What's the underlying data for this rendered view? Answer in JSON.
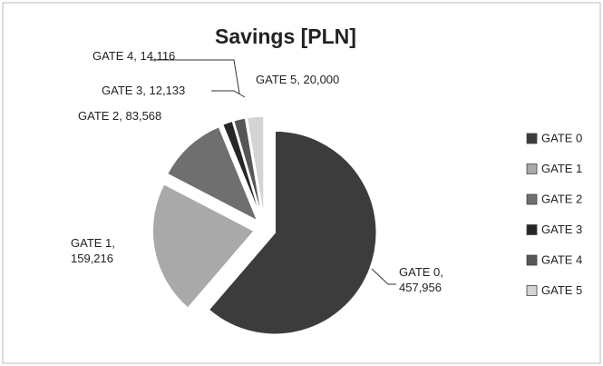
{
  "chart_data": {
    "type": "pie",
    "title": "Savings [PLN]",
    "categories": [
      "GATE 0",
      "GATE 1",
      "GATE 2",
      "GATE 3",
      "GATE 4",
      "GATE 5"
    ],
    "values": [
      457956,
      159216,
      83568,
      12133,
      14116,
      20000
    ],
    "value_labels": [
      "GATE 0, 457,956",
      "GATE 1, 159,216",
      "GATE 2, 83,568",
      "GATE 3, 12,133",
      "GATE 4, 14,116",
      "GATE 5, 20,000"
    ],
    "colors": [
      "#3c3c3c",
      "#a9a9a9",
      "#6f6f6f",
      "#262626",
      "#565656",
      "#d4d4d4"
    ],
    "legend": "right",
    "exploded": true
  }
}
